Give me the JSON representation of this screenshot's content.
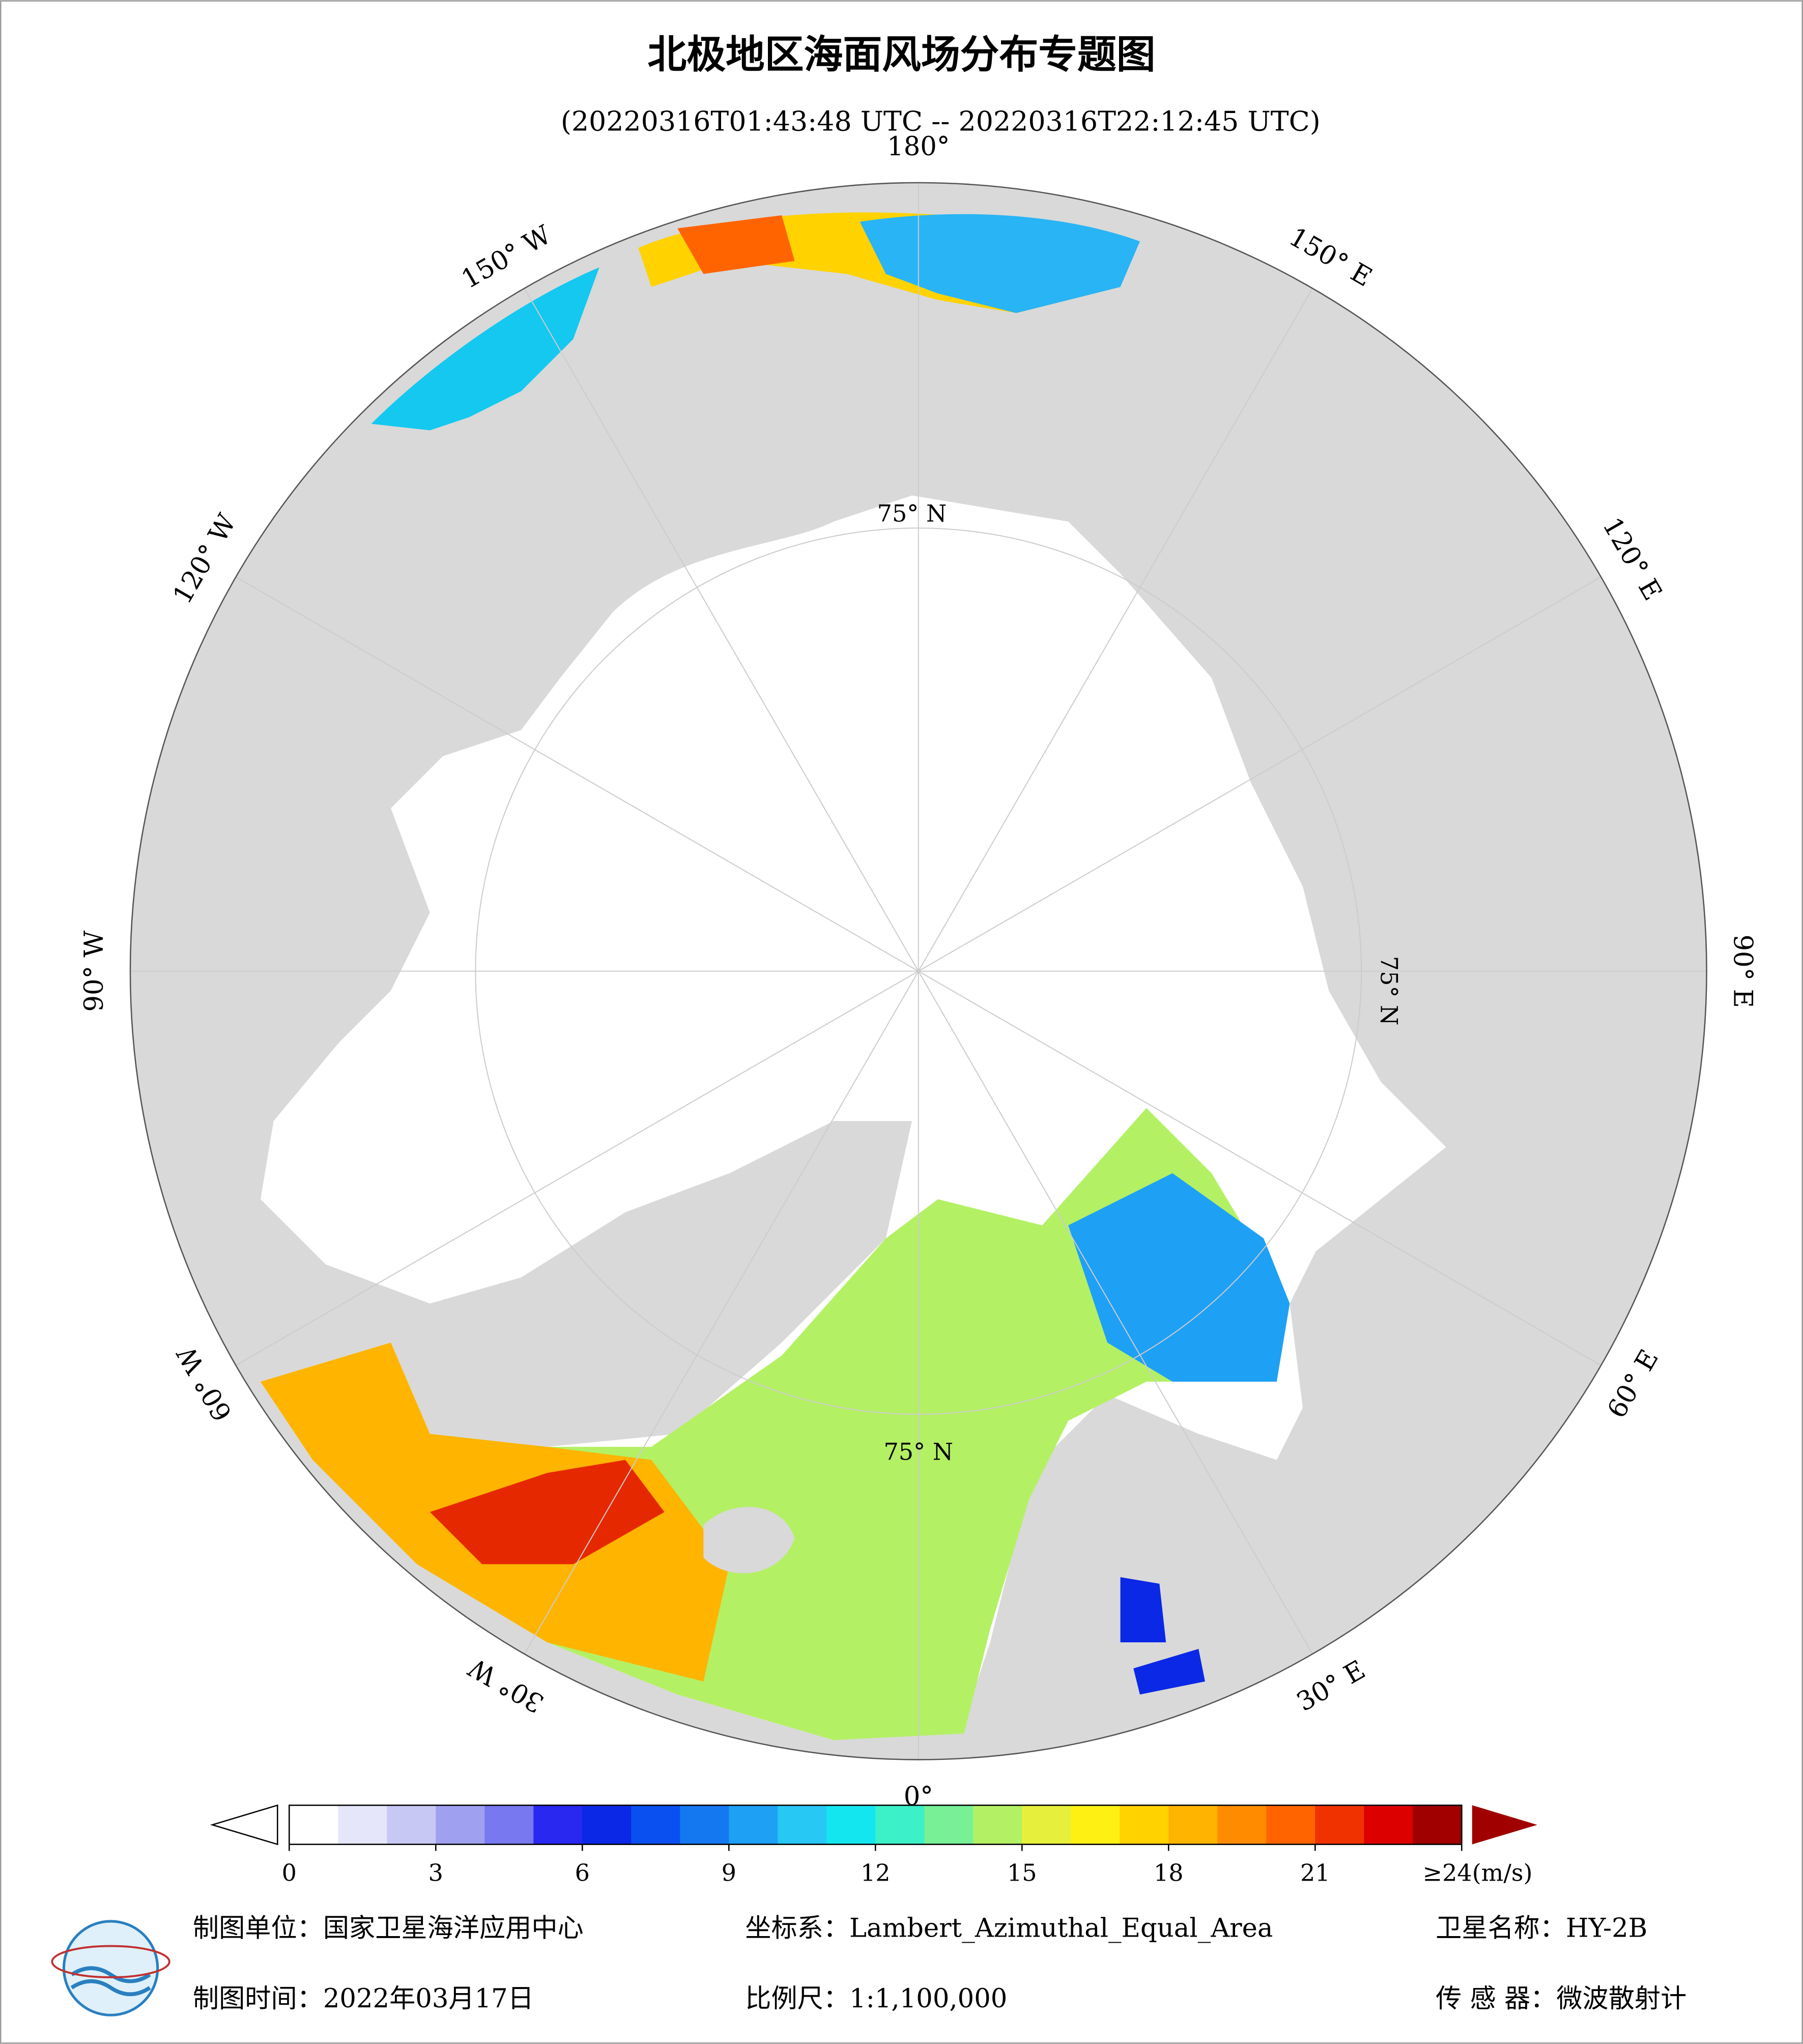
{
  "header": {
    "title": "北极地区海面风场分布专题图",
    "subtitle": "(20220316T01:43:48 UTC -- 20220316T22:12:45 UTC)"
  },
  "map": {
    "longitude_labels": [
      {
        "value": 180,
        "label": "180°"
      },
      {
        "value": 150,
        "label": "150° E"
      },
      {
        "value": 120,
        "label": "120° E"
      },
      {
        "value": 90,
        "label": "90° E"
      },
      {
        "value": 60,
        "label": "60° E"
      },
      {
        "value": 30,
        "label": "30° E"
      },
      {
        "value": 0,
        "label": "0°"
      },
      {
        "value": -30,
        "label": "30° W"
      },
      {
        "value": -60,
        "label": "60° W"
      },
      {
        "value": -90,
        "label": "90° W"
      },
      {
        "value": -120,
        "label": "120° W"
      },
      {
        "value": -150,
        "label": "150° W"
      }
    ],
    "latitude_label": "75° N"
  },
  "colorbar": {
    "range": [
      0,
      24
    ],
    "colors": [
      "#ffffff",
      "#e6e6fa",
      "#c8c8f5",
      "#a0a0f0",
      "#7878f0",
      "#2828f0",
      "#0a28e6",
      "#0a50f0",
      "#1478f0",
      "#1ea0f5",
      "#28c8f5",
      "#14e6f0",
      "#3cf0c8",
      "#78f096",
      "#b4f064",
      "#e6f03c",
      "#fff014",
      "#ffd200",
      "#ffb400",
      "#ff8c00",
      "#ff6400",
      "#f03200",
      "#dc0000",
      "#a00000"
    ],
    "ticks": [
      0,
      3,
      6,
      9,
      12,
      15,
      18,
      21,
      {
        "value": 24,
        "label": "≥24(m/s)"
      }
    ]
  },
  "footer": {
    "unit": "制图单位：国家卫星海洋应用中心",
    "coords": "坐标系：Lambert_Azimuthal_Equal_Area",
    "satellite": "卫星名称：HY-2B",
    "date": "制图时间：2022年03月17日",
    "scale": "比例尺：1:1,100,000",
    "sensor": "传 感 器：微波散射计"
  }
}
